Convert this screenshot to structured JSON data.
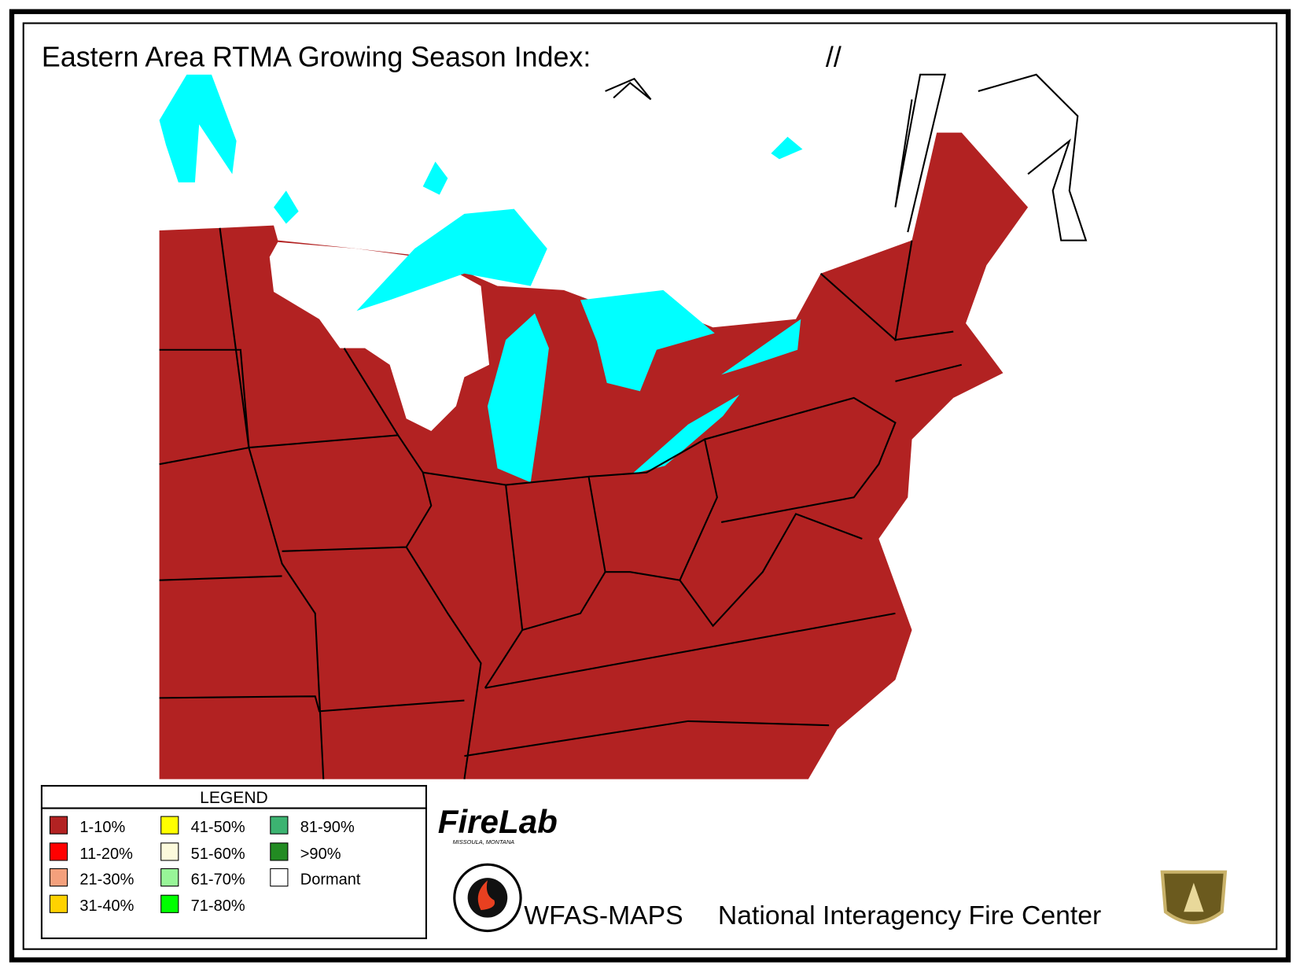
{
  "header": {
    "title": "Eastern Area RTMA Growing Season Index:",
    "date": "//"
  },
  "legend": {
    "title": "LEGEND",
    "items": [
      {
        "label": "1-10%",
        "color": "#b22222"
      },
      {
        "label": "11-20%",
        "color": "#ff0000"
      },
      {
        "label": "21-30%",
        "color": "#f4a07c"
      },
      {
        "label": "31-40%",
        "color": "#ffd200"
      },
      {
        "label": "41-50%",
        "color": "#ffff00"
      },
      {
        "label": "51-60%",
        "color": "#fcfadc"
      },
      {
        "label": "61-70%",
        "color": "#98f598"
      },
      {
        "label": "71-80%",
        "color": "#00ff00"
      },
      {
        "label": "81-90%",
        "color": "#3cb371"
      },
      {
        "label": ">90%",
        "color": "#228b22"
      },
      {
        "label": "Dormant",
        "color": "#ffffff"
      }
    ]
  },
  "logos": {
    "firelab": "FireLab",
    "firelab_location": "MISSOULA, MONTANA"
  },
  "footer": {
    "product": "WFAS-MAPS",
    "agency": "National Interagency Fire Center"
  }
}
